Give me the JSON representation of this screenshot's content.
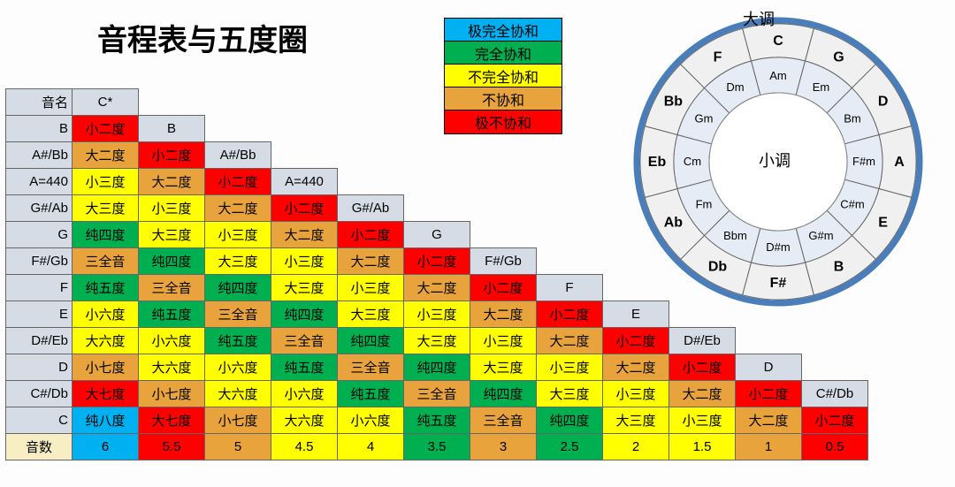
{
  "title": "音程表与五度圈",
  "legend": {
    "items": [
      {
        "label": "极完全协和",
        "color": "#00b0f0"
      },
      {
        "label": "完全协和",
        "color": "#00b050"
      },
      {
        "label": "不完全协和",
        "color": "#ffff00"
      },
      {
        "label": "不协和",
        "color": "#e8a33d"
      },
      {
        "label": "极不协和",
        "color": "#ff0000"
      }
    ]
  },
  "colors": {
    "header": "#d6dce6",
    "cream": "#f8eec4",
    "cyan": "#00b0f0",
    "green": "#00b050",
    "yellow": "#ffff00",
    "orange": "#e8a33d",
    "red": "#ff0000",
    "circleRing": "#4a7ebb",
    "circleOuterFill": "#f0f0f0",
    "circleInnerFill": "#e6ecf5"
  },
  "circle": {
    "majorLabel": "大调",
    "minorLabel": "小调",
    "majors": [
      "C",
      "G",
      "D",
      "A",
      "E",
      "B",
      "F#",
      "Db",
      "Ab",
      "Eb",
      "Bb",
      "F"
    ],
    "minors": [
      "Am",
      "Em",
      "Bm",
      "F#m",
      "C#m",
      "G#m",
      "D#m",
      "Bbm",
      "Fm",
      "Cm",
      "Gm",
      "Dm"
    ],
    "radiusOuter": 160,
    "radiusMid": 118,
    "radiusInner": 78,
    "radiusHole": 44,
    "majorFontSize": 16,
    "majorFontWeight": "bold",
    "minorFontSize": 13
  },
  "table": {
    "rowHeaderLabel": "音名",
    "rowHeads": [
      "音名",
      "B",
      "A#/Bb",
      "A=440",
      "G#/Ab",
      "G",
      "F#/Gb",
      "F",
      "E",
      "D#/Eb",
      "D",
      "C#/Db",
      "C",
      "音数"
    ],
    "colHeads": [
      "C*",
      "B",
      "A#/Bb",
      "A=440",
      "G#/Ab",
      "G",
      "F#/Gb",
      "F",
      "E",
      "D#/Eb",
      "D",
      "C#/Db"
    ],
    "grid": [
      [
        {
          "t": "C*",
          "c": "header"
        }
      ],
      [
        {
          "t": "小二度",
          "c": "red"
        },
        {
          "t": "B",
          "c": "header"
        }
      ],
      [
        {
          "t": "大二度",
          "c": "orange"
        },
        {
          "t": "小二度",
          "c": "red"
        },
        {
          "t": "A#/Bb",
          "c": "header"
        }
      ],
      [
        {
          "t": "小三度",
          "c": "yellow"
        },
        {
          "t": "大二度",
          "c": "orange"
        },
        {
          "t": "小二度",
          "c": "red"
        },
        {
          "t": "A=440",
          "c": "header"
        }
      ],
      [
        {
          "t": "大三度",
          "c": "yellow"
        },
        {
          "t": "小三度",
          "c": "yellow"
        },
        {
          "t": "大二度",
          "c": "orange"
        },
        {
          "t": "小二度",
          "c": "red"
        },
        {
          "t": "G#/Ab",
          "c": "header"
        }
      ],
      [
        {
          "t": "纯四度",
          "c": "green"
        },
        {
          "t": "大三度",
          "c": "yellow"
        },
        {
          "t": "小三度",
          "c": "yellow"
        },
        {
          "t": "大二度",
          "c": "orange"
        },
        {
          "t": "小二度",
          "c": "red"
        },
        {
          "t": "G",
          "c": "header"
        }
      ],
      [
        {
          "t": "三全音",
          "c": "orange"
        },
        {
          "t": "纯四度",
          "c": "green"
        },
        {
          "t": "大三度",
          "c": "yellow"
        },
        {
          "t": "小三度",
          "c": "yellow"
        },
        {
          "t": "大二度",
          "c": "orange"
        },
        {
          "t": "小二度",
          "c": "red"
        },
        {
          "t": "F#/Gb",
          "c": "header"
        }
      ],
      [
        {
          "t": "纯五度",
          "c": "green"
        },
        {
          "t": "三全音",
          "c": "orange"
        },
        {
          "t": "纯四度",
          "c": "green"
        },
        {
          "t": "大三度",
          "c": "yellow"
        },
        {
          "t": "小三度",
          "c": "yellow"
        },
        {
          "t": "大二度",
          "c": "orange"
        },
        {
          "t": "小二度",
          "c": "red"
        },
        {
          "t": "F",
          "c": "header"
        }
      ],
      [
        {
          "t": "小六度",
          "c": "yellow"
        },
        {
          "t": "纯五度",
          "c": "green"
        },
        {
          "t": "三全音",
          "c": "orange"
        },
        {
          "t": "纯四度",
          "c": "green"
        },
        {
          "t": "大三度",
          "c": "yellow"
        },
        {
          "t": "小三度",
          "c": "yellow"
        },
        {
          "t": "大二度",
          "c": "orange"
        },
        {
          "t": "小二度",
          "c": "red"
        },
        {
          "t": "E",
          "c": "header"
        }
      ],
      [
        {
          "t": "大六度",
          "c": "yellow"
        },
        {
          "t": "小六度",
          "c": "yellow"
        },
        {
          "t": "纯五度",
          "c": "green"
        },
        {
          "t": "三全音",
          "c": "orange"
        },
        {
          "t": "纯四度",
          "c": "green"
        },
        {
          "t": "大三度",
          "c": "yellow"
        },
        {
          "t": "小三度",
          "c": "yellow"
        },
        {
          "t": "大二度",
          "c": "orange"
        },
        {
          "t": "小二度",
          "c": "red"
        },
        {
          "t": "D#/Eb",
          "c": "header"
        }
      ],
      [
        {
          "t": "小七度",
          "c": "orange"
        },
        {
          "t": "大六度",
          "c": "yellow"
        },
        {
          "t": "小六度",
          "c": "yellow"
        },
        {
          "t": "纯五度",
          "c": "green"
        },
        {
          "t": "三全音",
          "c": "orange"
        },
        {
          "t": "纯四度",
          "c": "green"
        },
        {
          "t": "大三度",
          "c": "yellow"
        },
        {
          "t": "小三度",
          "c": "yellow"
        },
        {
          "t": "大二度",
          "c": "orange"
        },
        {
          "t": "小二度",
          "c": "red"
        },
        {
          "t": "D",
          "c": "header"
        }
      ],
      [
        {
          "t": "大七度",
          "c": "red"
        },
        {
          "t": "小七度",
          "c": "orange"
        },
        {
          "t": "大六度",
          "c": "yellow"
        },
        {
          "t": "小六度",
          "c": "yellow"
        },
        {
          "t": "纯五度",
          "c": "green"
        },
        {
          "t": "三全音",
          "c": "orange"
        },
        {
          "t": "纯四度",
          "c": "green"
        },
        {
          "t": "大三度",
          "c": "yellow"
        },
        {
          "t": "小三度",
          "c": "yellow"
        },
        {
          "t": "大二度",
          "c": "orange"
        },
        {
          "t": "小二度",
          "c": "red"
        },
        {
          "t": "C#/Db",
          "c": "header"
        }
      ],
      [
        {
          "t": "纯八度",
          "c": "cyan"
        },
        {
          "t": "大七度",
          "c": "red"
        },
        {
          "t": "小七度",
          "c": "orange"
        },
        {
          "t": "大六度",
          "c": "yellow"
        },
        {
          "t": "小六度",
          "c": "yellow"
        },
        {
          "t": "纯五度",
          "c": "green"
        },
        {
          "t": "三全音",
          "c": "orange"
        },
        {
          "t": "纯四度",
          "c": "green"
        },
        {
          "t": "大三度",
          "c": "yellow"
        },
        {
          "t": "小三度",
          "c": "yellow"
        },
        {
          "t": "大二度",
          "c": "orange"
        },
        {
          "t": "小二度",
          "c": "red"
        }
      ],
      [
        {
          "t": "6",
          "c": "cyan"
        },
        {
          "t": "5.5",
          "c": "red"
        },
        {
          "t": "5",
          "c": "orange"
        },
        {
          "t": "4.5",
          "c": "yellow"
        },
        {
          "t": "4",
          "c": "yellow"
        },
        {
          "t": "3.5",
          "c": "green"
        },
        {
          "t": "3",
          "c": "orange"
        },
        {
          "t": "2.5",
          "c": "green"
        },
        {
          "t": "2",
          "c": "yellow"
        },
        {
          "t": "1.5",
          "c": "yellow"
        },
        {
          "t": "1",
          "c": "orange"
        },
        {
          "t": "0.5",
          "c": "red"
        }
      ]
    ]
  }
}
